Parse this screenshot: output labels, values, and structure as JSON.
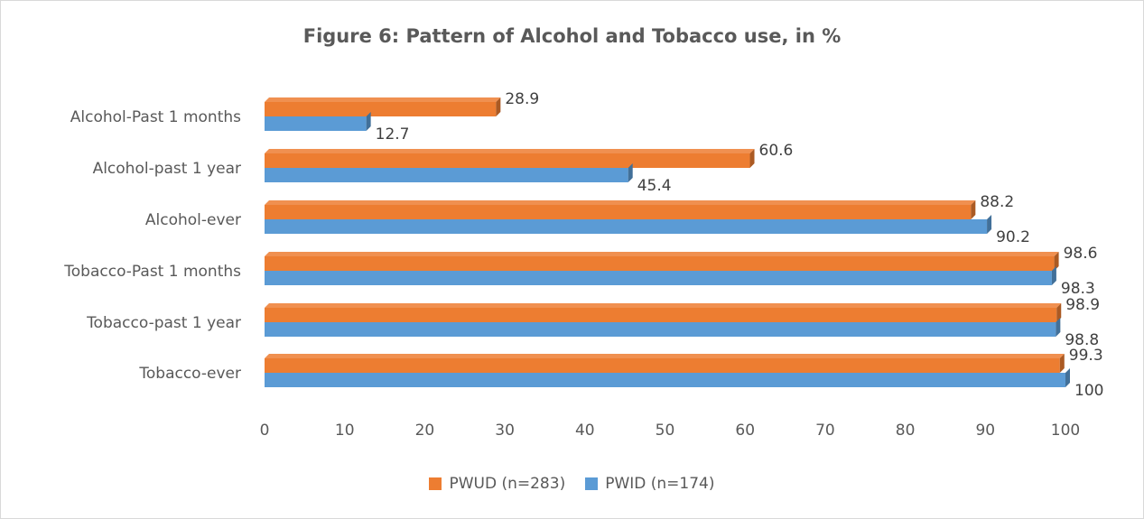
{
  "chart_data": {
    "type": "bar",
    "orientation": "horizontal",
    "title": "Figure 6: Pattern of Alcohol and Tobacco use, in %",
    "categories": [
      "Alcohol-Past 1 months",
      "Alcohol-past 1 year",
      "Alcohol-ever",
      "Tobacco-Past 1 months",
      "Tobacco-past 1 year",
      "Tobacco-ever"
    ],
    "series": [
      {
        "name": "PWUD (n=283)",
        "color": "#ED7D31",
        "values": [
          28.9,
          60.6,
          88.2,
          98.6,
          98.9,
          99.3
        ]
      },
      {
        "name": "PWID (n=174)",
        "color": "#5B9BD5",
        "values": [
          12.7,
          45.4,
          90.2,
          98.3,
          98.8,
          100
        ]
      }
    ],
    "data_labels": [
      [
        "28.9",
        "60.6",
        "88.2",
        "98.6",
        "98.9",
        "99.3"
      ],
      [
        "12.7",
        "45.4",
        "90.2",
        "98.3",
        "98.8",
        "100"
      ]
    ],
    "xlim": [
      0,
      100
    ],
    "xticks": [
      "0",
      "10",
      "20",
      "30",
      "40",
      "50",
      "60",
      "70",
      "80",
      "90",
      "100"
    ],
    "grid": false,
    "legend_position": "bottom",
    "style": "3d-clustered-bar"
  }
}
